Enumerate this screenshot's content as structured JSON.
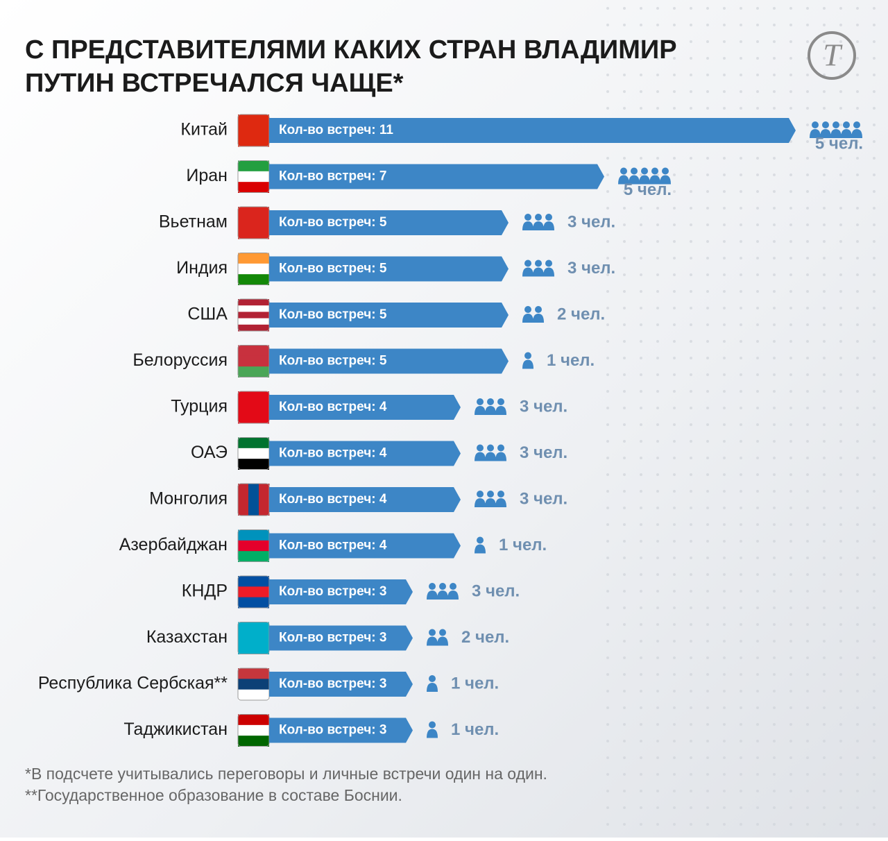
{
  "title": "С ПРЕДСТАВИТЕЛЯМИ КАКИХ СТРАН ВЛАДИМИР ПУТИН ВСТРЕЧАЛСЯ ЧАЩЕ*",
  "chart_data": {
    "type": "bar",
    "categories": [
      "Китай",
      "Иран",
      "Вьетнам",
      "Индия",
      "США",
      "Белоруссия",
      "Турция",
      "ОАЭ",
      "Монголия",
      "Азербайджан",
      "КНДР",
      "Казахстан",
      "Республика Сербская**",
      "Таджикистан"
    ],
    "values": [
      11,
      7,
      5,
      5,
      5,
      5,
      4,
      4,
      4,
      4,
      3,
      3,
      3,
      3
    ],
    "value_labels": [
      "Кол-во встреч: 11",
      "Кол-во встреч: 7",
      "Кол-во встреч: 5",
      "Кол-во встреч: 5",
      "Кол-во встреч: 5",
      "Кол-во встреч: 5",
      "Кол-во встреч: 4",
      "Кол-во встреч: 4",
      "Кол-во встреч: 4",
      "Кол-во встреч: 4",
      "Кол-во встреч: 3",
      "Кол-во встреч: 3",
      "Кол-во встреч: 3",
      "Кол-во встреч: 3"
    ],
    "people": [
      5,
      5,
      3,
      3,
      2,
      1,
      3,
      3,
      3,
      1,
      3,
      2,
      1,
      1
    ],
    "people_labels": [
      "5 чел.",
      "5 чел.",
      "3 чел.",
      "3 чел.",
      "2 чел.",
      "1 чел.",
      "3 чел.",
      "3 чел.",
      "3 чел.",
      "1 чел.",
      "3 чел.",
      "2 чел.",
      "1 чел.",
      "1 чел."
    ],
    "color": "#3d86c6"
  },
  "footnotes": [
    "*В подсчете учитывались переговоры и личные встречи один на один.",
    "**Государственное образование в составе Боснии."
  ]
}
